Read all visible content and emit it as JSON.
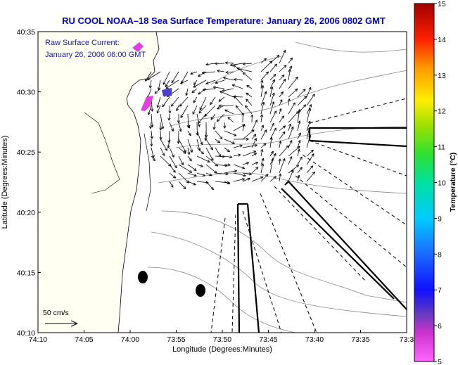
{
  "chart_data": {
    "type": "other",
    "title": "RU COOL  NOAA–18  Sea Surface Temperature:  January 26, 2006 0802 GMT",
    "annotations": [
      "Raw Surface Current:",
      "January 26, 2006 06:00 GMT"
    ],
    "scale_label": "50 cm/s",
    "xlabel": "Longitude (Degrees:Minutes)",
    "ylabel": "Latitude (Degrees:Minutes)",
    "x_ticks": [
      "74:10",
      "74:05",
      "74:00",
      "73:55",
      "73:50",
      "73:45",
      "73:40",
      "73:35",
      "73:3"
    ],
    "y_ticks": [
      "40:35",
      "40:30",
      "40:25",
      "40:20",
      "40:15",
      "40:10"
    ],
    "colorbar": {
      "label": "Temperature (°C)",
      "ticks": [
        "15",
        "14",
        "13",
        "12",
        "11",
        "10",
        "9",
        "8",
        "7",
        "6",
        "5"
      ],
      "range": [
        5,
        15
      ]
    },
    "colors": {
      "title": "#0000cc",
      "annotation": "#1a1aaa",
      "land": "#fffff2",
      "water": "#ffffff"
    }
  }
}
